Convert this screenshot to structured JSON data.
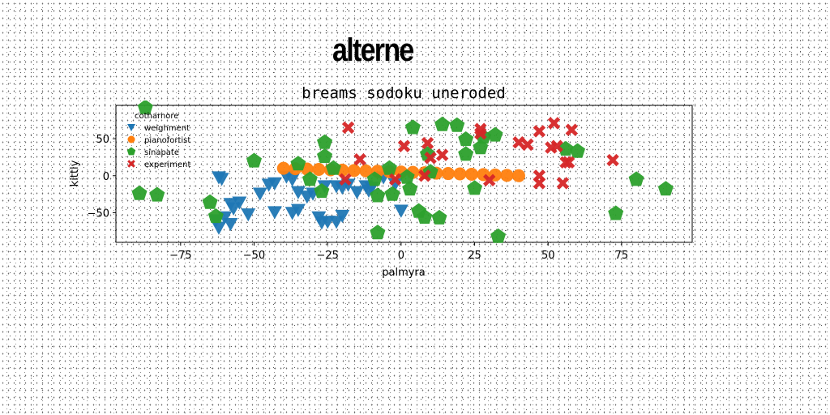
{
  "figure": {
    "title": "alterne"
  },
  "chart_data": {
    "type": "scatter",
    "title": "breams sodoku uneroded",
    "xlabel": "palmyra",
    "ylabel": "kittly",
    "xlim": [
      -97,
      99
    ],
    "ylim": [
      -90,
      95
    ],
    "xticks": [
      -75,
      -50,
      -25,
      0,
      25,
      50,
      75
    ],
    "yticks": [
      -50,
      0,
      50
    ],
    "grid": false,
    "legend": {
      "title": "cotharnore",
      "position": "top-left"
    },
    "series": [
      {
        "name": "weighment",
        "color": "#1f77b4",
        "marker": "triangle-down",
        "points": [
          [
            -62,
            -2
          ],
          [
            -61,
            -4
          ],
          [
            -39,
            -1
          ],
          [
            -37,
            -5
          ],
          [
            -43,
            -10
          ],
          [
            -45,
            -12
          ],
          [
            -48,
            -24
          ],
          [
            -35,
            -22
          ],
          [
            -32,
            -28
          ],
          [
            -30,
            -24
          ],
          [
            -26,
            -14
          ],
          [
            -22,
            -14
          ],
          [
            -20,
            -16
          ],
          [
            -12,
            -14
          ],
          [
            -10,
            -16
          ],
          [
            -6,
            -2
          ],
          [
            -11,
            -20
          ],
          [
            -15,
            -22
          ],
          [
            -18,
            -12
          ],
          [
            -2,
            -11
          ],
          [
            -55,
            -36
          ],
          [
            -58,
            -38
          ],
          [
            -57,
            -44
          ],
          [
            -52,
            -52
          ],
          [
            -60,
            -56
          ],
          [
            -63,
            -60
          ],
          [
            -58,
            -65
          ],
          [
            -62,
            -70
          ],
          [
            -43,
            -49
          ],
          [
            -37,
            -50
          ],
          [
            -28,
            -56
          ],
          [
            -25,
            -62
          ],
          [
            -22,
            -62
          ],
          [
            -27,
            -63
          ],
          [
            -20,
            -54
          ],
          [
            -35,
            -46
          ],
          [
            0,
            -47
          ]
        ]
      },
      {
        "name": "pianofortist",
        "color": "#ff7f0e",
        "marker": "circle",
        "points": [
          [
            -40,
            10
          ],
          [
            -36,
            9.5
          ],
          [
            -32,
            9
          ],
          [
            -28,
            8.5
          ],
          [
            -24,
            8
          ],
          [
            -20,
            7.5
          ],
          [
            -16,
            7
          ],
          [
            -12,
            6.5
          ],
          [
            -8,
            6
          ],
          [
            -4,
            5.5
          ],
          [
            0,
            5
          ],
          [
            4,
            4.5
          ],
          [
            8,
            4
          ],
          [
            12,
            3.5
          ],
          [
            16,
            3
          ],
          [
            20,
            2.5
          ],
          [
            24,
            2
          ],
          [
            28,
            1.5
          ],
          [
            32,
            1
          ],
          [
            36,
            0.5
          ],
          [
            40,
            0
          ]
        ]
      },
      {
        "name": "sinapate",
        "color": "#2ca02c",
        "marker": "pentagon",
        "points": [
          [
            -87,
            92
          ],
          [
            -89,
            -24
          ],
          [
            -83,
            -26
          ],
          [
            -65,
            -36
          ],
          [
            -63,
            -55
          ],
          [
            -50,
            20
          ],
          [
            -35,
            16
          ],
          [
            -31,
            -5
          ],
          [
            -27,
            -21
          ],
          [
            -26,
            26
          ],
          [
            -26,
            45
          ],
          [
            -23,
            10
          ],
          [
            -9,
            -5
          ],
          [
            -8,
            -27
          ],
          [
            -8,
            -77
          ],
          [
            -4,
            10
          ],
          [
            -3,
            -25
          ],
          [
            2,
            -2
          ],
          [
            3,
            -18
          ],
          [
            4,
            65
          ],
          [
            6,
            -48
          ],
          [
            8,
            -56
          ],
          [
            9,
            29
          ],
          [
            10,
            5
          ],
          [
            13,
            -57
          ],
          [
            14,
            69
          ],
          [
            19,
            68
          ],
          [
            22,
            29
          ],
          [
            22,
            49
          ],
          [
            25,
            -17
          ],
          [
            27,
            38
          ],
          [
            28,
            52
          ],
          [
            32,
            55
          ],
          [
            33,
            -82
          ],
          [
            56,
            36
          ],
          [
            60,
            33
          ],
          [
            73,
            -51
          ],
          [
            80,
            -5
          ],
          [
            90,
            -18
          ]
        ]
      },
      {
        "name": "experiment",
        "color": "#d62728",
        "marker": "x",
        "points": [
          [
            -18,
            65
          ],
          [
            -14,
            22
          ],
          [
            -19,
            -5
          ],
          [
            -2,
            -5
          ],
          [
            1,
            40
          ],
          [
            9,
            44
          ],
          [
            10,
            24
          ],
          [
            14,
            28
          ],
          [
            8,
            0
          ],
          [
            27,
            63
          ],
          [
            27,
            57
          ],
          [
            30,
            -6
          ],
          [
            40,
            45
          ],
          [
            43,
            42
          ],
          [
            47,
            60
          ],
          [
            47,
            0
          ],
          [
            47,
            -10
          ],
          [
            51,
            38
          ],
          [
            52,
            71
          ],
          [
            53,
            40
          ],
          [
            55,
            -10
          ],
          [
            56,
            18
          ],
          [
            57,
            18
          ],
          [
            58,
            62
          ],
          [
            72,
            21
          ]
        ]
      }
    ]
  }
}
